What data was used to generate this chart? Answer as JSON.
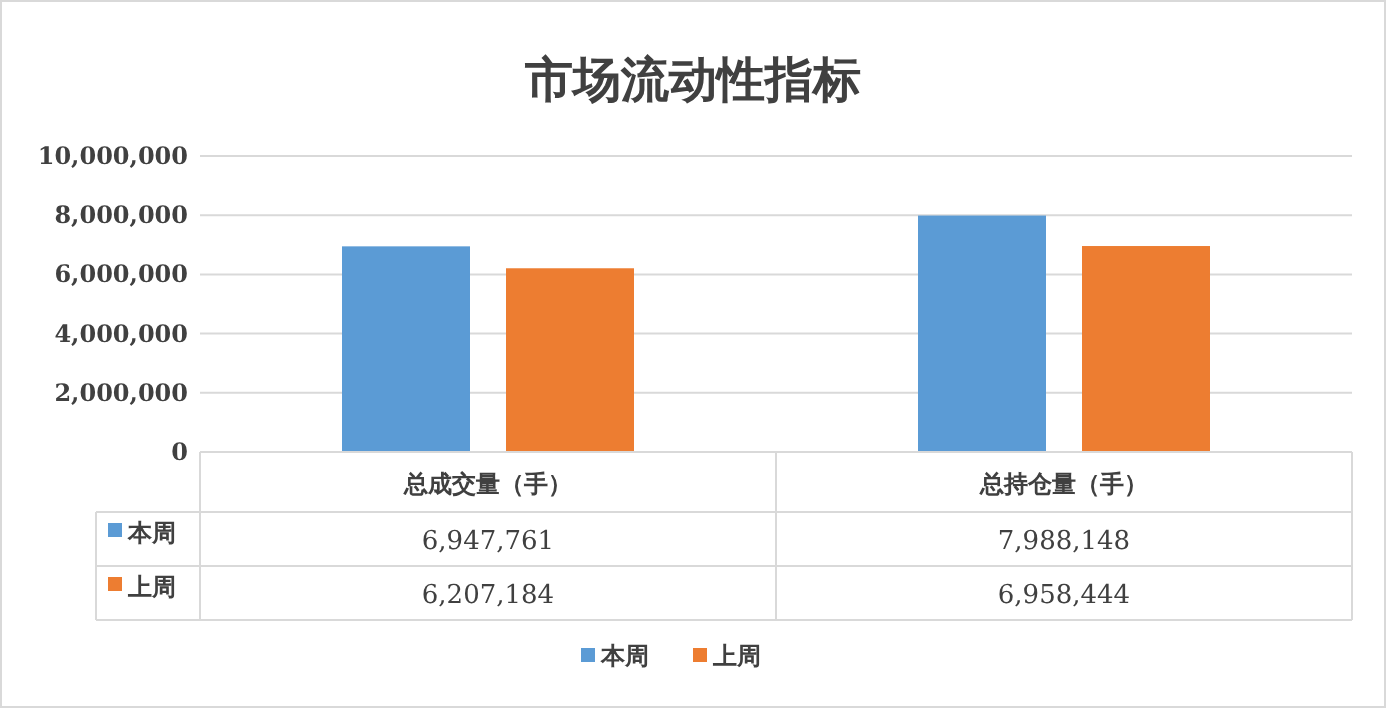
{
  "chart_data": {
    "type": "bar",
    "title": "市场流动性指标",
    "categories": [
      "总成交量（手）",
      "总持仓量（手）"
    ],
    "series": [
      {
        "name": "本周",
        "color": "#5b9bd5",
        "values": [
          6947761,
          7988148
        ],
        "value_labels": [
          "6,947,761",
          "7,988,148"
        ]
      },
      {
        "name": "上周",
        "color": "#ed7d31",
        "values": [
          6207184,
          6958444
        ],
        "value_labels": [
          "6,207,184",
          "6,958,444"
        ]
      }
    ],
    "ylim": [
      0,
      10000000
    ],
    "yticks": [
      {
        "value": 0,
        "label": "0"
      },
      {
        "value": 2000000,
        "label": "2,000,000"
      },
      {
        "value": 4000000,
        "label": "4,000,000"
      },
      {
        "value": 6000000,
        "label": "6,000,000"
      },
      {
        "value": 8000000,
        "label": "8,000,000"
      },
      {
        "value": 10000000,
        "label": "10,000,000"
      }
    ],
    "grid": "y",
    "legend": "bottom"
  }
}
